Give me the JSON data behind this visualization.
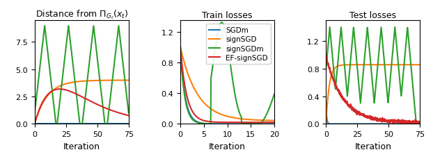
{
  "title1": "Distance from $\\Pi_{G_t}(x_t)$",
  "title2": "Train losses",
  "title3": "Test losses",
  "xlabel": "Iteration",
  "legend_labels": [
    "SGDm",
    "signSGD",
    "signSGDm",
    "EF-signSGD"
  ],
  "colors": [
    "#1f77b4",
    "#ff7f0e",
    "#2ca02c",
    "#d62728"
  ],
  "plot1_xlim": [
    0,
    75
  ],
  "plot1_ylim": [
    0,
    9.5
  ],
  "plot1_yticks": [
    0.0,
    2.5,
    5.0,
    7.5
  ],
  "plot1_xticks": [
    0,
    25,
    50,
    75
  ],
  "plot2_xlim": [
    0,
    20
  ],
  "plot2_ylim": [
    0,
    1.35
  ],
  "plot2_yticks": [
    0.0,
    0.4,
    0.8,
    1.2
  ],
  "plot2_xticks": [
    0,
    5,
    10,
    15,
    20
  ],
  "plot3_xlim": [
    0,
    75
  ],
  "plot3_ylim": [
    0,
    1.5
  ],
  "plot3_yticks": [
    0.0,
    0.4,
    0.8,
    1.2
  ],
  "plot3_xticks": [
    0,
    25,
    50,
    75
  ]
}
